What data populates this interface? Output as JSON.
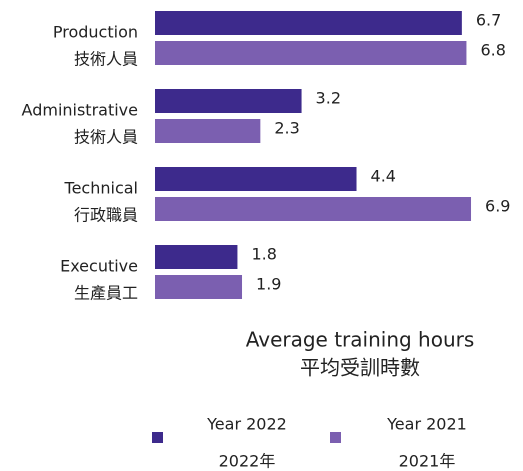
{
  "chart_data": {
    "type": "bar",
    "orientation": "horizontal",
    "categories": [
      [
        "Production",
        "技術人員"
      ],
      [
        "Administrative",
        "技術人員"
      ],
      [
        "Technical",
        "行政職員"
      ],
      [
        "Executive",
        "生產員工"
      ]
    ],
    "series": [
      {
        "name": [
          "Year 2022",
          "2022年"
        ],
        "color": "#3d2a8c",
        "values": [
          6.7,
          3.2,
          4.4,
          1.8
        ]
      },
      {
        "name": [
          "Year 2021",
          "2021年"
        ],
        "color": "#7b5fb0",
        "values": [
          6.8,
          2.3,
          6.9,
          1.9
        ]
      }
    ],
    "xlabel": [
      "Average training hours",
      "平均受訓時數"
    ],
    "legend": "bottom"
  }
}
